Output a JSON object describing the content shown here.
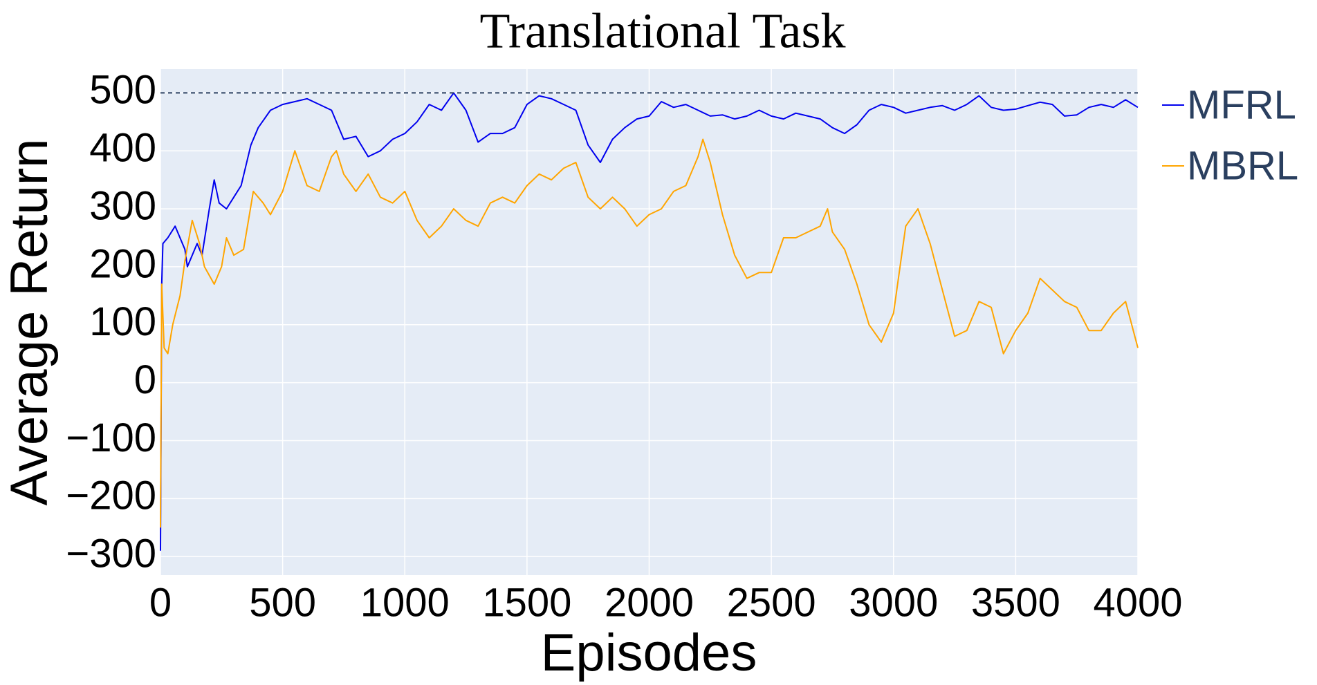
{
  "chart_data": {
    "type": "line",
    "title": "Translational Task",
    "x_label": "Episodes",
    "y_label": "Average Return",
    "xlim": [
      0,
      4000
    ],
    "ylim": [
      -332,
      541
    ],
    "xticks": [
      0,
      500,
      1000,
      1500,
      2000,
      2500,
      3000,
      3500,
      4000
    ],
    "yticks": [
      {
        "value": -300,
        "label": "−300"
      },
      {
        "value": -200,
        "label": "−200"
      },
      {
        "value": -100,
        "label": "−100"
      },
      0,
      100,
      200,
      300,
      400,
      500
    ],
    "reference_line": 500,
    "grid": true,
    "legend": "right",
    "series": [
      {
        "name": "MFRL",
        "color": "#0000ee",
        "x": [
          0,
          5,
          10,
          30,
          60,
          100,
          110,
          150,
          170,
          200,
          220,
          240,
          270,
          300,
          330,
          370,
          400,
          450,
          500,
          550,
          600,
          650,
          700,
          750,
          800,
          850,
          900,
          950,
          1000,
          1050,
          1100,
          1150,
          1200,
          1250,
          1300,
          1350,
          1400,
          1450,
          1500,
          1550,
          1600,
          1650,
          1700,
          1750,
          1800,
          1850,
          1900,
          1950,
          2000,
          2050,
          2100,
          2150,
          2200,
          2250,
          2300,
          2350,
          2400,
          2450,
          2500,
          2550,
          2600,
          2650,
          2700,
          2750,
          2800,
          2850,
          2900,
          2950,
          3000,
          3050,
          3100,
          3150,
          3200,
          3250,
          3300,
          3350,
          3400,
          3450,
          3500,
          3550,
          3600,
          3650,
          3700,
          3750,
          3800,
          3850,
          3900,
          3950,
          4000
        ],
        "values": [
          -290,
          170,
          240,
          250,
          270,
          230,
          200,
          240,
          220,
          300,
          350,
          310,
          300,
          320,
          340,
          410,
          440,
          470,
          480,
          485,
          490,
          480,
          470,
          420,
          425,
          390,
          400,
          420,
          430,
          450,
          480,
          470,
          500,
          470,
          415,
          430,
          430,
          440,
          480,
          495,
          490,
          480,
          470,
          410,
          380,
          420,
          440,
          455,
          460,
          485,
          475,
          480,
          470,
          460,
          462,
          455,
          460,
          470,
          460,
          455,
          465,
          460,
          455,
          440,
          430,
          445,
          470,
          480,
          475,
          465,
          470,
          475,
          478,
          470,
          480,
          495,
          475,
          470,
          472,
          478,
          484,
          480,
          460,
          462,
          475,
          480,
          475,
          488,
          475
        ]
      },
      {
        "name": "MBRL",
        "color": "#ffa500",
        "x": [
          0,
          5,
          15,
          30,
          50,
          80,
          100,
          130,
          160,
          180,
          220,
          250,
          270,
          300,
          340,
          360,
          380,
          420,
          450,
          500,
          550,
          600,
          650,
          700,
          720,
          750,
          800,
          850,
          900,
          950,
          1000,
          1050,
          1100,
          1150,
          1200,
          1250,
          1300,
          1350,
          1400,
          1450,
          1500,
          1550,
          1600,
          1650,
          1700,
          1750,
          1800,
          1850,
          1900,
          1950,
          2000,
          2050,
          2100,
          2150,
          2200,
          2220,
          2250,
          2300,
          2350,
          2400,
          2450,
          2500,
          2550,
          2600,
          2650,
          2700,
          2730,
          2750,
          2800,
          2850,
          2900,
          2950,
          3000,
          3050,
          3100,
          3150,
          3200,
          3250,
          3300,
          3350,
          3400,
          3450,
          3500,
          3550,
          3600,
          3650,
          3700,
          3750,
          3800,
          3850,
          3900,
          3950,
          4000
        ],
        "values": [
          -250,
          170,
          60,
          50,
          100,
          150,
          210,
          280,
          240,
          200,
          170,
          200,
          250,
          220,
          230,
          280,
          330,
          310,
          290,
          330,
          400,
          340,
          330,
          390,
          400,
          360,
          330,
          360,
          320,
          310,
          330,
          280,
          250,
          270,
          300,
          280,
          270,
          310,
          320,
          310,
          340,
          360,
          350,
          370,
          380,
          320,
          300,
          320,
          300,
          270,
          290,
          300,
          330,
          340,
          390,
          420,
          380,
          290,
          220,
          180,
          190,
          190,
          250,
          250,
          260,
          270,
          300,
          260,
          230,
          170,
          100,
          70,
          120,
          270,
          300,
          240,
          160,
          80,
          90,
          140,
          130,
          50,
          90,
          120,
          180,
          160,
          140,
          130,
          90,
          90,
          120,
          140,
          60
        ]
      }
    ]
  }
}
